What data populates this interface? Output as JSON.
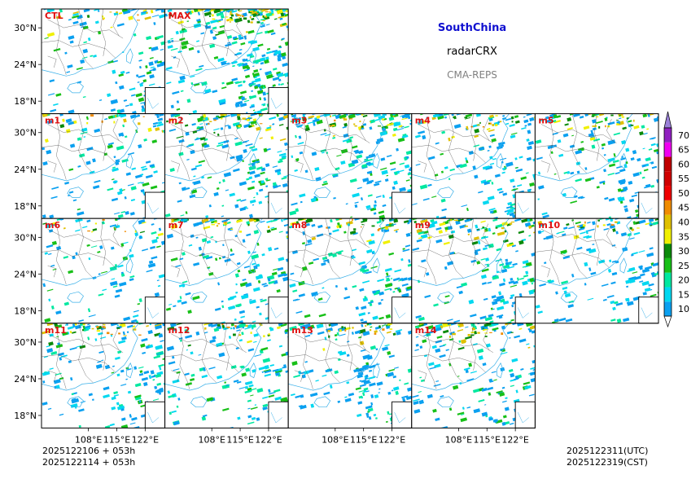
{
  "header": {
    "region": "SouthChina",
    "variable": "radarCRX",
    "system": "CMA-REPS",
    "region_color": "#1010d0",
    "system_color": "#808080"
  },
  "panels": [
    {
      "label": "CTL",
      "row": 0,
      "col": 0,
      "coverage": 0.35,
      "north_heavy": 0.6
    },
    {
      "label": "MAX",
      "row": 0,
      "col": 1,
      "coverage": 0.85,
      "north_heavy": 0.9
    },
    {
      "label": "m1",
      "row": 1,
      "col": 0,
      "coverage": 0.35,
      "north_heavy": 0.5
    },
    {
      "label": "m2",
      "row": 1,
      "col": 1,
      "coverage": 0.55,
      "north_heavy": 0.7
    },
    {
      "label": "m3",
      "row": 1,
      "col": 2,
      "coverage": 0.6,
      "north_heavy": 0.7
    },
    {
      "label": "m4",
      "row": 1,
      "col": 3,
      "coverage": 0.45,
      "north_heavy": 0.7
    },
    {
      "label": "m5",
      "row": 1,
      "col": 4,
      "coverage": 0.45,
      "north_heavy": 0.7
    },
    {
      "label": "m6",
      "row": 2,
      "col": 0,
      "coverage": 0.3,
      "north_heavy": 0.5
    },
    {
      "label": "m7",
      "row": 2,
      "col": 1,
      "coverage": 0.45,
      "north_heavy": 0.7
    },
    {
      "label": "m8",
      "row": 2,
      "col": 2,
      "coverage": 0.45,
      "north_heavy": 0.8
    },
    {
      "label": "m9",
      "row": 2,
      "col": 3,
      "coverage": 0.5,
      "north_heavy": 0.6
    },
    {
      "label": "m10",
      "row": 2,
      "col": 4,
      "coverage": 0.4,
      "north_heavy": 0.6
    },
    {
      "label": "m11",
      "row": 3,
      "col": 0,
      "coverage": 0.5,
      "north_heavy": 0.8
    },
    {
      "label": "m12",
      "row": 3,
      "col": 1,
      "coverage": 0.45,
      "north_heavy": 0.6
    },
    {
      "label": "m13",
      "row": 3,
      "col": 2,
      "coverage": 0.45,
      "north_heavy": 0.6
    },
    {
      "label": "m14",
      "row": 3,
      "col": 3,
      "coverage": 0.5,
      "north_heavy": 0.7
    }
  ],
  "axes": {
    "lat_ticks": [
      "30°N",
      "24°N",
      "18°N"
    ],
    "lon_ticks": [
      "108°E",
      "115°E",
      "122°E"
    ]
  },
  "colorbar": {
    "levels": [
      "10",
      "15",
      "20",
      "25",
      "30",
      "35",
      "40",
      "45",
      "50",
      "55",
      "60",
      "65",
      "70"
    ],
    "colors": [
      "#0aa0f0",
      "#00d8f0",
      "#00e8a0",
      "#18c018",
      "#0a8a0a",
      "#f0f000",
      "#e0c000",
      "#f08c00",
      "#f00000",
      "#d00000",
      "#c00000",
      "#f000f0",
      "#9020c0"
    ],
    "over_color": "#9a80d8",
    "under_color": "#ffffff"
  },
  "footer": {
    "init_line1": "2025122106  +  053h",
    "init_line2": "2025122114  +  053h",
    "valid_utc": "2025122311(UTC)",
    "valid_cst": "2025122319(CST)"
  },
  "colors": {
    "label": "#e01010",
    "coast": "#3ab0e8",
    "border": "#555555"
  }
}
